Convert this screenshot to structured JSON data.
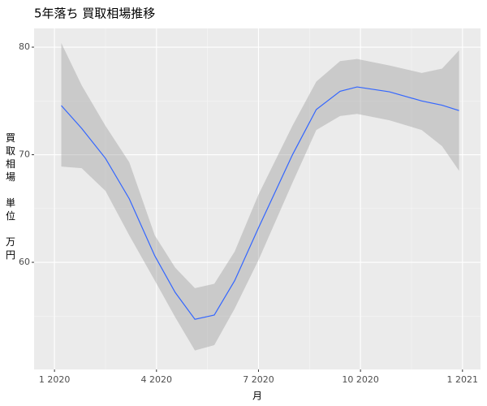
{
  "chart_data": {
    "type": "smooth",
    "title": "5年落ち 買取相場推移",
    "x_label": "月",
    "y_label": "買取相場 単位 万円",
    "x": [
      0.2,
      0.8,
      1.5,
      2.2,
      2.95,
      3.55,
      4.13,
      4.7,
      5.3,
      6.0,
      7.0,
      7.7,
      8.4,
      8.9,
      9.85,
      10.8,
      11.4,
      11.9
    ],
    "series": [
      {
        "color": "#3366ff",
        "values": [
          74.57,
          72.45,
          69.66,
          65.9,
          60.6,
          57.2,
          54.7,
          55.1,
          58.3,
          63.2,
          70.0,
          74.2,
          75.9,
          76.3,
          75.85,
          75.0,
          74.6,
          74.1
        ],
        "upper": [
          80.38,
          76.45,
          72.68,
          69.3,
          62.5,
          59.5,
          57.6,
          58.0,
          61.0,
          66.3,
          72.7,
          76.8,
          78.7,
          78.9,
          78.3,
          77.6,
          78.0,
          79.7
        ],
        "lower": [
          68.9,
          68.75,
          66.64,
          62.5,
          58.3,
          54.9,
          51.8,
          52.3,
          55.7,
          60.2,
          67.4,
          72.3,
          73.6,
          73.8,
          73.2,
          72.3,
          70.8,
          68.5
        ]
      }
    ],
    "band_color": "#999999",
    "xlim": [
      -0.6,
      12.53
    ],
    "xticks": [
      {
        "value": 0,
        "label": "1 2020"
      },
      {
        "value": 3,
        "label": "4 2020"
      },
      {
        "value": 6,
        "label": "7 2020"
      },
      {
        "value": 9,
        "label": "10 2020"
      },
      {
        "value": 12,
        "label": "1 2021"
      }
    ],
    "x_minor_ticks": [
      1.5,
      4.5,
      7.5,
      10.5
    ],
    "ylim": [
      50.04,
      81.74
    ],
    "yticks": [
      60,
      70,
      80
    ],
    "y_minor_ticks": [
      55,
      65,
      75
    ],
    "grid": true
  }
}
